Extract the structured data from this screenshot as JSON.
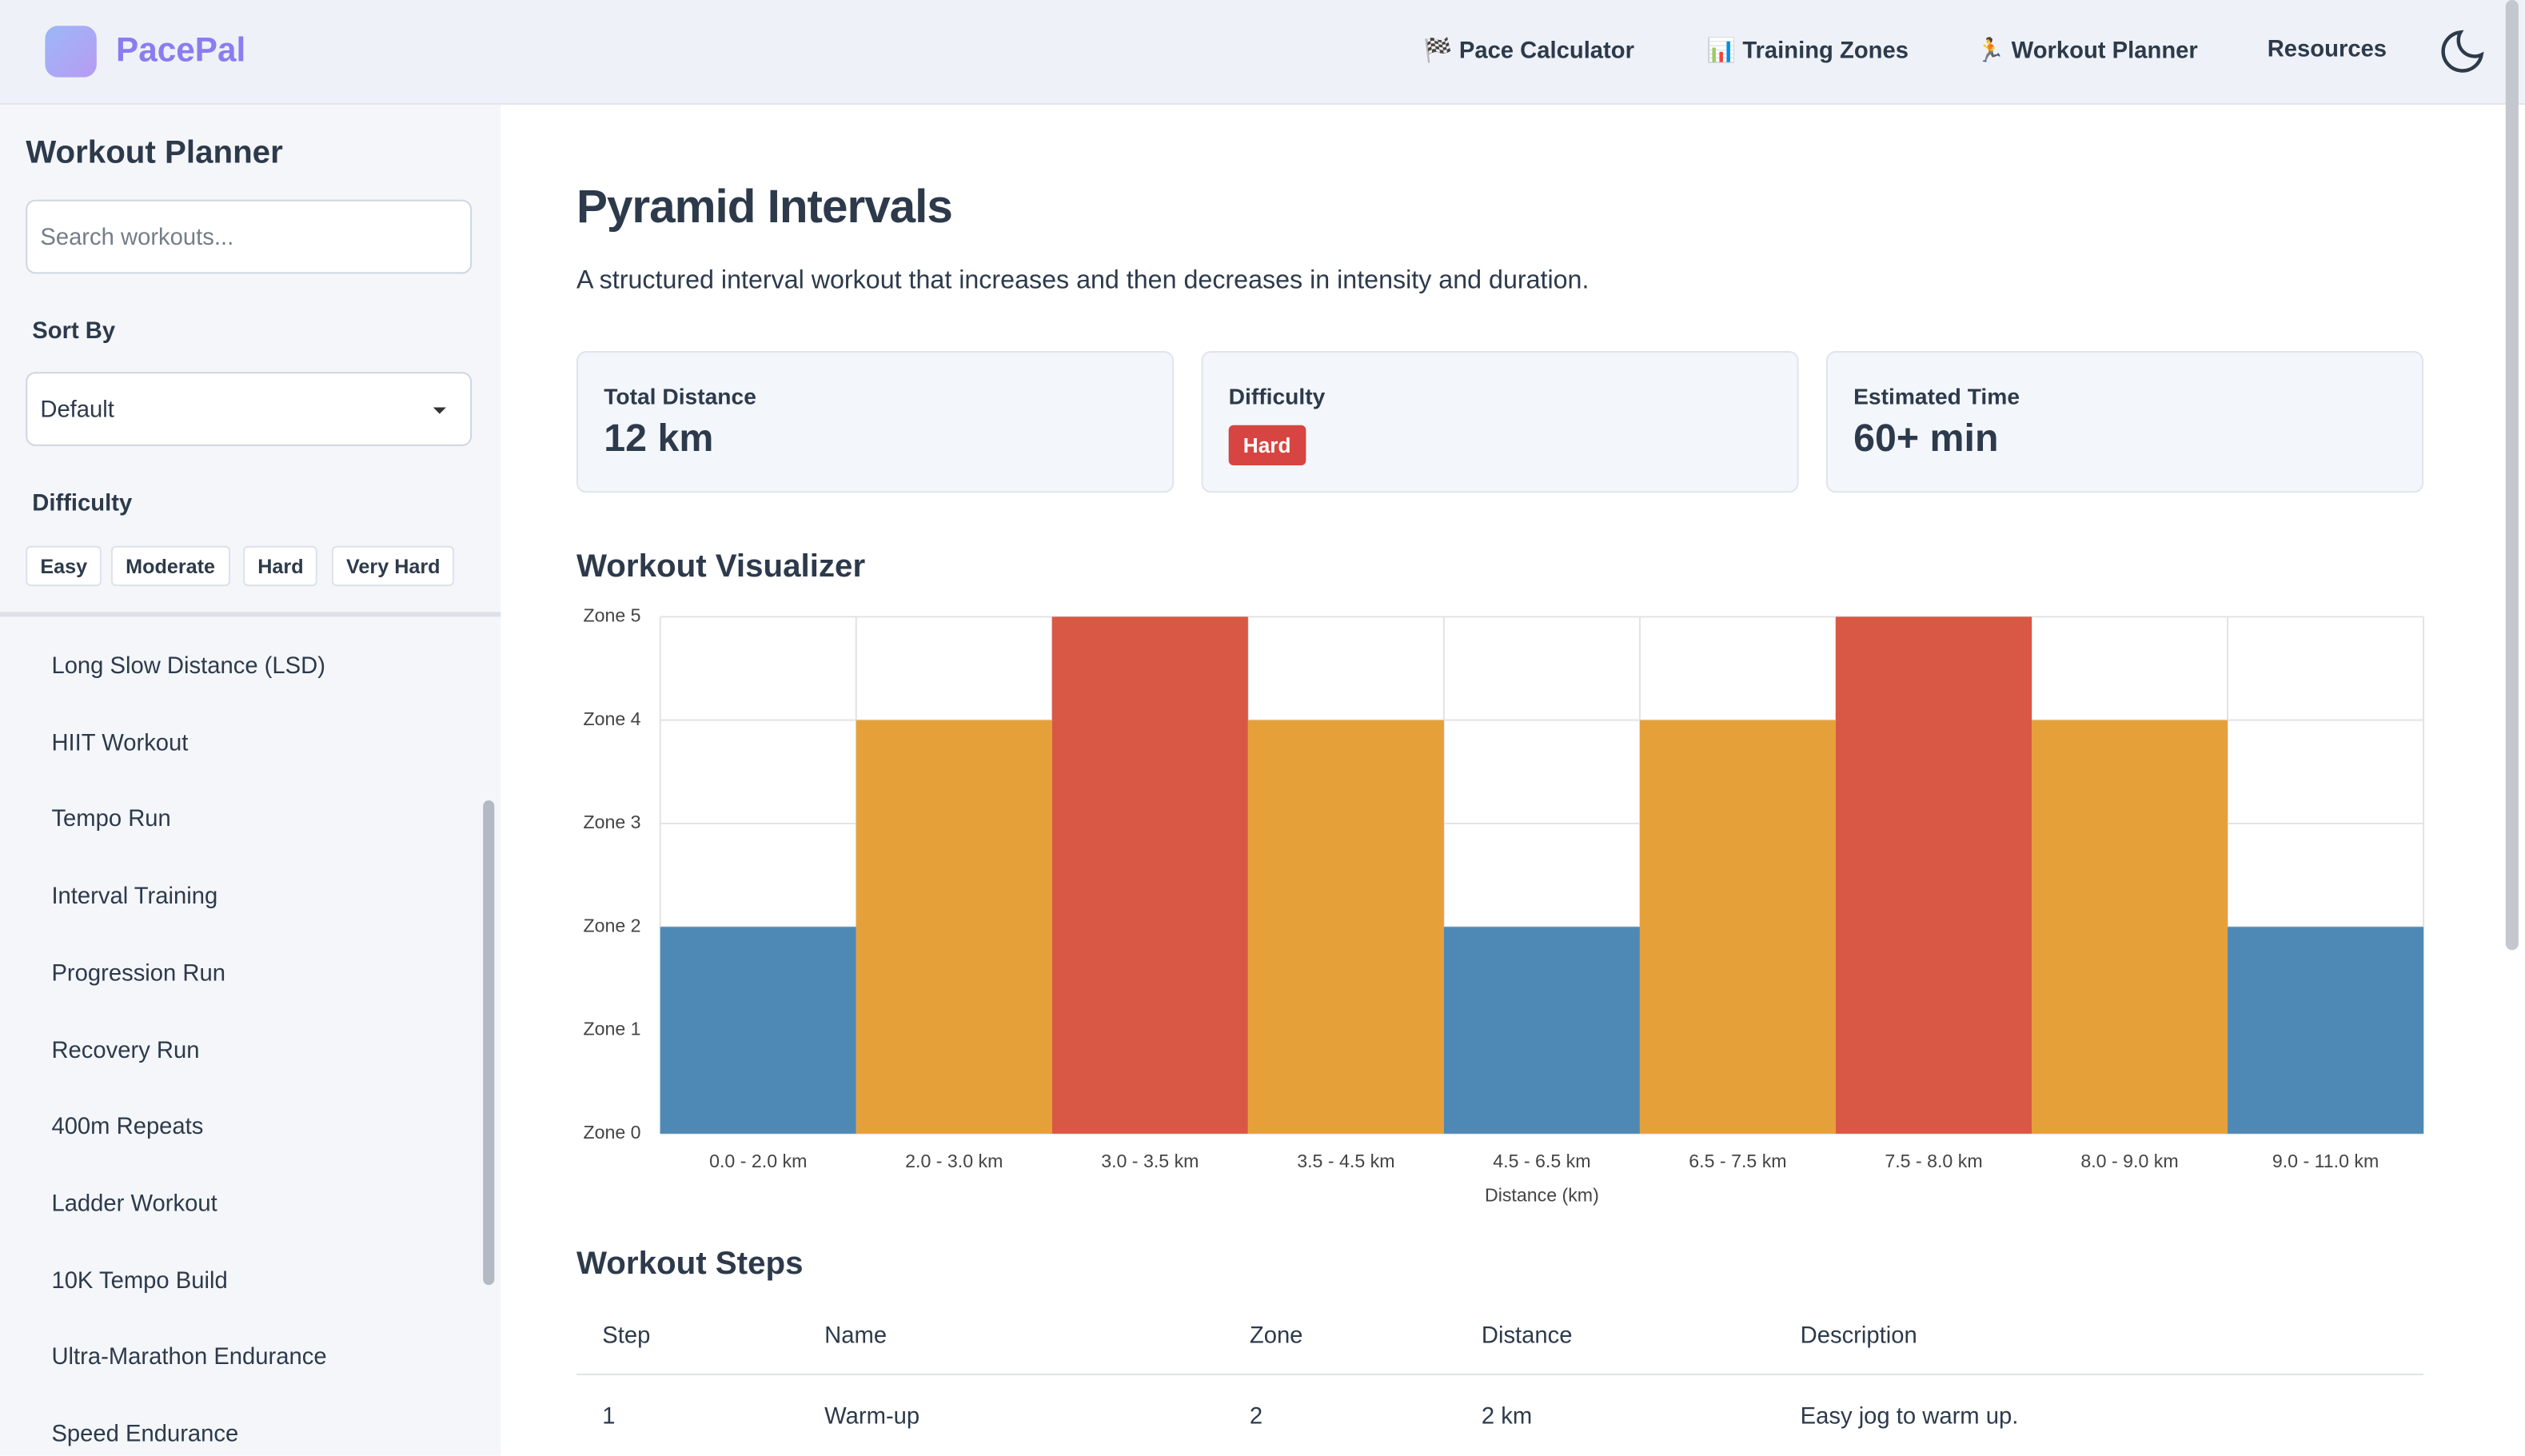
{
  "header": {
    "brand": "PacePal",
    "nav": [
      "🏁 Pace Calculator",
      "📊 Training Zones",
      "🏃 Workout Planner",
      "Resources"
    ]
  },
  "sidebar": {
    "title": "Workout Planner",
    "search_placeholder": "Search workouts...",
    "sort_label": "Sort By",
    "sort_value": "Default",
    "difficulty_label": "Difficulty",
    "difficulties": [
      "Easy",
      "Moderate",
      "Hard",
      "Very Hard"
    ],
    "workouts": [
      "Long Slow Distance (LSD)",
      "HIIT Workout",
      "Tempo Run",
      "Interval Training",
      "Progression Run",
      "Recovery Run",
      "400m Repeats",
      "Ladder Workout",
      "10K Tempo Build",
      "Ultra-Marathon Endurance",
      "Speed Endurance"
    ]
  },
  "main": {
    "title": "Pyramid Intervals",
    "description": "A structured interval workout that increases and then decreases in intensity and duration.",
    "stats": [
      {
        "label": "Total Distance",
        "value": "12 km"
      },
      {
        "label": "Difficulty",
        "value": "Hard"
      },
      {
        "label": "Estimated Time",
        "value": "60+ min"
      }
    ],
    "steps_title": "Workout Steps",
    "table": {
      "headers": [
        "Step",
        "Name",
        "Zone",
        "Distance",
        "Description"
      ],
      "rows": [
        [
          1,
          "Warm-up",
          2,
          "2 km",
          "Easy jog to warm up."
        ]
      ]
    }
  },
  "chart_data": {
    "type": "bar",
    "title": "Workout Visualizer",
    "x_label": "Distance (km)",
    "categories": [
      "0.0 - 2.0 km",
      "2.0 - 3.0 km",
      "3.0 - 3.5 km",
      "3.5 - 4.5 km",
      "4.5 - 6.5 km",
      "6.5 - 7.5 km",
      "7.5 - 8.0 km",
      "8.0 - 9.0 km",
      "9.0 - 11.0 km"
    ],
    "values": [
      2,
      4,
      5,
      4,
      2,
      4,
      5,
      4,
      2
    ],
    "colors": [
      "#4e89b5",
      "#e6a03a",
      "#d95745",
      "#e6a03a",
      "#4e89b5",
      "#e6a03a",
      "#d95745",
      "#e6a03a",
      "#4e89b5"
    ],
    "ylim": [
      0,
      5
    ],
    "yticks": [
      {
        "value": 0,
        "label": "Zone 0"
      },
      {
        "value": 1,
        "label": "Zone 1"
      },
      {
        "value": 2,
        "label": "Zone 2"
      },
      {
        "value": 3,
        "label": "Zone 3"
      },
      {
        "value": 4,
        "label": "Zone 4"
      },
      {
        "value": 5,
        "label": "Zone 5"
      }
    ],
    "grid": true
  }
}
